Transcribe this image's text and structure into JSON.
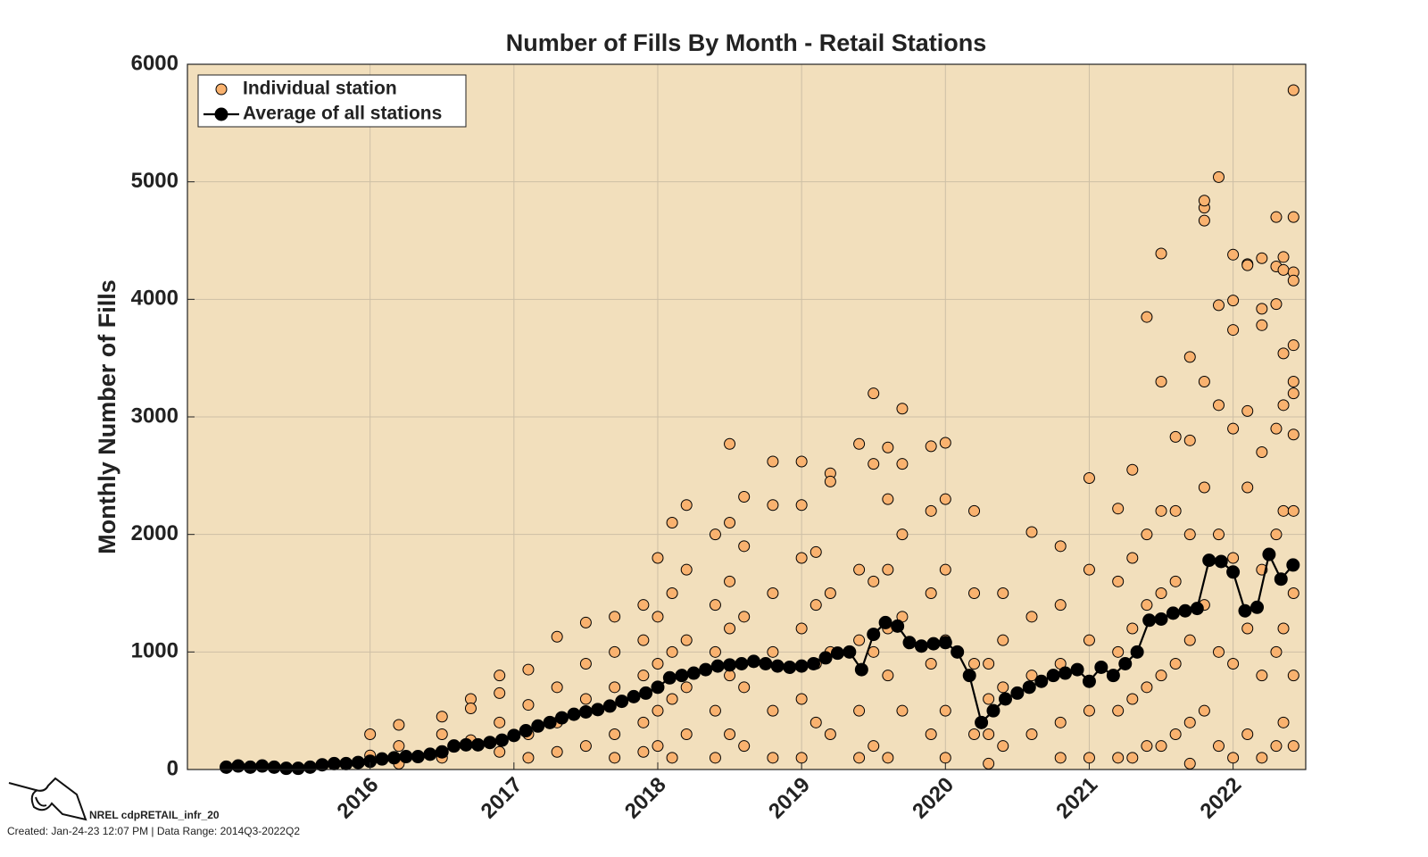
{
  "chart_data": {
    "type": "scatter",
    "title": "Number of Fills By Month - Retail Stations",
    "ylabel": "Monthly Number of Fills",
    "xlim": [
      2014.73,
      2022.505
    ],
    "xticks": [
      2016,
      2017,
      2018,
      2019,
      2020,
      2021,
      2022
    ],
    "ylim": [
      0,
      6000
    ],
    "yticks": [
      0,
      1000,
      2000,
      3000,
      4000,
      5000,
      6000
    ],
    "grid": true,
    "legend": "upper left",
    "background": "#f2dfbc",
    "series": [
      {
        "name": "Individual station",
        "style": "markers",
        "color": "#f9b26f",
        "x": [
          2016.0,
          2016.0,
          2016.2,
          2016.2,
          2016.2,
          2016.5,
          2016.5,
          2016.5,
          2016.7,
          2016.7,
          2016.7,
          2016.9,
          2016.9,
          2016.9,
          2016.9,
          2017.1,
          2017.1,
          2017.1,
          2017.1,
          2017.3,
          2017.3,
          2017.3,
          2017.3,
          2017.5,
          2017.5,
          2017.5,
          2017.5,
          2017.7,
          2017.7,
          2017.7,
          2017.7,
          2017.7,
          2017.9,
          2017.9,
          2017.9,
          2017.9,
          2017.9,
          2018.0,
          2018.0,
          2018.0,
          2018.0,
          2018.0,
          2018.1,
          2018.1,
          2018.1,
          2018.1,
          2018.1,
          2018.2,
          2018.2,
          2018.2,
          2018.2,
          2018.2,
          2018.4,
          2018.4,
          2018.4,
          2018.4,
          2018.4,
          2018.5,
          2018.5,
          2018.5,
          2018.5,
          2018.5,
          2018.5,
          2018.6,
          2018.6,
          2018.6,
          2018.6,
          2018.6,
          2018.8,
          2018.8,
          2018.8,
          2018.8,
          2018.8,
          2018.8,
          2019.0,
          2019.0,
          2019.0,
          2019.0,
          2019.0,
          2019.0,
          2019.1,
          2019.1,
          2019.1,
          2019.1,
          2019.2,
          2019.2,
          2019.2,
          2019.2,
          2019.2,
          2019.4,
          2019.4,
          2019.4,
          2019.4,
          2019.4,
          2019.5,
          2019.5,
          2019.5,
          2019.5,
          2019.5,
          2019.6,
          2019.6,
          2019.6,
          2019.6,
          2019.6,
          2019.6,
          2019.7,
          2019.7,
          2019.7,
          2019.7,
          2019.7,
          2019.9,
          2019.9,
          2019.9,
          2019.9,
          2019.9,
          2020.0,
          2020.0,
          2020.0,
          2020.0,
          2020.0,
          2020.0,
          2020.2,
          2020.2,
          2020.2,
          2020.2,
          2020.3,
          2020.3,
          2020.3,
          2020.3,
          2020.4,
          2020.4,
          2020.4,
          2020.4,
          2020.6,
          2020.6,
          2020.6,
          2020.6,
          2020.8,
          2020.8,
          2020.8,
          2020.8,
          2020.8,
          2021.0,
          2021.0,
          2021.0,
          2021.0,
          2021.0,
          2021.2,
          2021.2,
          2021.2,
          2021.2,
          2021.2,
          2021.3,
          2021.3,
          2021.3,
          2021.3,
          2021.3,
          2021.4,
          2021.4,
          2021.4,
          2021.4,
          2021.4,
          2021.5,
          2021.5,
          2021.5,
          2021.5,
          2021.5,
          2021.5,
          2021.6,
          2021.6,
          2021.6,
          2021.6,
          2021.6,
          2021.7,
          2021.7,
          2021.7,
          2021.7,
          2021.7,
          2021.7,
          2021.8,
          2021.8,
          2021.8,
          2021.8,
          2021.8,
          2021.8,
          2021.8,
          2021.9,
          2021.9,
          2021.9,
          2021.9,
          2021.9,
          2021.9,
          2022.0,
          2022.0,
          2022.0,
          2022.0,
          2022.0,
          2022.0,
          2022.0,
          2022.1,
          2022.1,
          2022.1,
          2022.1,
          2022.1,
          2022.1,
          2022.2,
          2022.2,
          2022.2,
          2022.2,
          2022.2,
          2022.2,
          2022.2,
          2022.3,
          2022.3,
          2022.3,
          2022.3,
          2022.3,
          2022.3,
          2022.3,
          2022.35,
          2022.35,
          2022.35,
          2022.35,
          2022.35,
          2022.35,
          2022.35,
          2022.42,
          2022.42,
          2022.42,
          2022.42,
          2022.42,
          2022.42,
          2022.42,
          2022.42,
          2022.42,
          2022.42,
          2022.42,
          2022.42
        ],
        "values": [
          120,
          300,
          380,
          50,
          200,
          450,
          300,
          100,
          600,
          520,
          250,
          800,
          650,
          400,
          150,
          850,
          550,
          300,
          100,
          1130,
          700,
          400,
          150,
          1250,
          900,
          600,
          200,
          1300,
          1000,
          700,
          300,
          100,
          1400,
          1100,
          800,
          400,
          150,
          1800,
          1300,
          900,
          500,
          200,
          2100,
          1500,
          1000,
          600,
          100,
          2250,
          1700,
          1100,
          700,
          300,
          2000,
          1400,
          1000,
          500,
          100,
          2770,
          2100,
          1600,
          1200,
          800,
          300,
          2320,
          1900,
          1300,
          700,
          200,
          2620,
          2250,
          1500,
          1000,
          500,
          100,
          2620,
          2250,
          1800,
          1200,
          600,
          100,
          1850,
          1400,
          900,
          400,
          2520,
          2450,
          1500,
          1000,
          300,
          2770,
          1700,
          1100,
          500,
          100,
          3200,
          2600,
          1600,
          1000,
          200,
          2740,
          2300,
          1700,
          1200,
          800,
          100,
          3070,
          2600,
          2000,
          1300,
          500,
          2750,
          2200,
          1500,
          900,
          300,
          2780,
          2300,
          1700,
          1100,
          500,
          100,
          2200,
          1500,
          900,
          300,
          900,
          600,
          300,
          50,
          1500,
          1100,
          700,
          200,
          2020,
          1300,
          800,
          300,
          1900,
          1400,
          900,
          400,
          100,
          2480,
          1700,
          1100,
          500,
          100,
          2220,
          1600,
          1000,
          500,
          100,
          2550,
          1800,
          1200,
          600,
          100,
          3850,
          2000,
          1400,
          700,
          200,
          4390,
          3300,
          2200,
          1500,
          800,
          200,
          2830,
          2200,
          1600,
          900,
          300,
          3510,
          2800,
          2000,
          1100,
          400,
          50,
          4780,
          4840,
          4670,
          3300,
          2400,
          1400,
          500,
          5040,
          3950,
          3100,
          2000,
          1000,
          200,
          4380,
          3990,
          3740,
          2900,
          1800,
          900,
          100,
          4300,
          4290,
          3050,
          2400,
          1200,
          300,
          4350,
          3920,
          3780,
          2700,
          1700,
          800,
          100,
          4700,
          4280,
          3960,
          2900,
          2000,
          1000,
          200,
          4360,
          4250,
          3540,
          3100,
          2200,
          1200,
          400,
          5780,
          4700,
          4230,
          4160,
          3610,
          3300,
          3200,
          2850,
          2200,
          1500,
          800,
          200
        ]
      },
      {
        "name": "Average of all stations",
        "style": "line-markers",
        "color": "#000000",
        "x": [
          2015.0,
          2015.083,
          2015.167,
          2015.25,
          2015.333,
          2015.417,
          2015.5,
          2015.583,
          2015.667,
          2015.75,
          2015.833,
          2015.917,
          2016.0,
          2016.083,
          2016.167,
          2016.25,
          2016.333,
          2016.417,
          2016.5,
          2016.583,
          2016.667,
          2016.75,
          2016.833,
          2016.917,
          2017.0,
          2017.083,
          2017.167,
          2017.25,
          2017.333,
          2017.417,
          2017.5,
          2017.583,
          2017.667,
          2017.75,
          2017.833,
          2017.917,
          2018.0,
          2018.083,
          2018.167,
          2018.25,
          2018.333,
          2018.417,
          2018.5,
          2018.583,
          2018.667,
          2018.75,
          2018.833,
          2018.917,
          2019.0,
          2019.083,
          2019.167,
          2019.25,
          2019.333,
          2019.417,
          2019.5,
          2019.583,
          2019.667,
          2019.75,
          2019.833,
          2019.917,
          2020.0,
          2020.083,
          2020.167,
          2020.25,
          2020.333,
          2020.417,
          2020.5,
          2020.583,
          2020.667,
          2020.75,
          2020.833,
          2020.917,
          2021.0,
          2021.083,
          2021.167,
          2021.25,
          2021.333,
          2021.417,
          2021.5,
          2021.583,
          2021.667,
          2021.75,
          2021.833,
          2021.917,
          2022.0,
          2022.083,
          2022.167,
          2022.25,
          2022.333,
          2022.417
        ],
        "values": [
          20,
          30,
          20,
          30,
          20,
          10,
          10,
          20,
          40,
          50,
          50,
          60,
          70,
          90,
          100,
          110,
          110,
          130,
          150,
          200,
          210,
          210,
          230,
          250,
          290,
          330,
          370,
          400,
          440,
          470,
          490,
          510,
          540,
          580,
          620,
          650,
          700,
          780,
          800,
          820,
          850,
          880,
          890,
          900,
          920,
          900,
          880,
          870,
          880,
          900,
          950,
          990,
          1000,
          850,
          1150,
          1250,
          1220,
          1080,
          1050,
          1070,
          1080,
          1000,
          800,
          400,
          500,
          600,
          650,
          700,
          750,
          800,
          820,
          850,
          750,
          870,
          800,
          900,
          1000,
          1270,
          1280,
          1330,
          1350,
          1370,
          1780,
          1770,
          1680,
          1350,
          1380,
          1830,
          1620,
          1740
        ]
      }
    ]
  },
  "footer": {
    "id": "NREL cdpRETAIL_infr_20",
    "created": "Created: Jan-24-23 12:07 PM | Data Range: 2014Q3-2022Q2"
  }
}
